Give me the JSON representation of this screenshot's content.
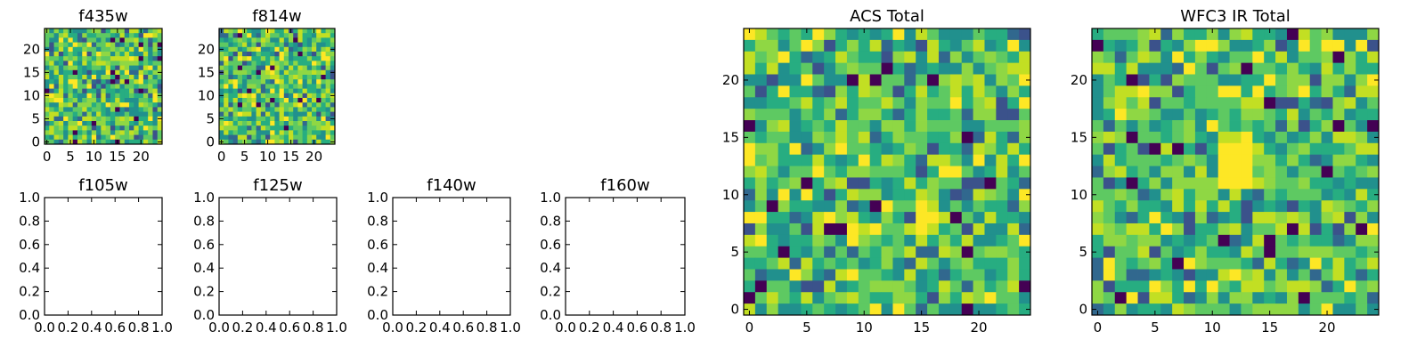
{
  "chart_data": [
    {
      "type": "heatmap",
      "title": "f435w",
      "xticks": [
        "0",
        "5",
        "10",
        "15",
        "20"
      ],
      "yticks": [
        "0",
        "5",
        "10",
        "15",
        "20"
      ],
      "grid": "25x25 pixel noise image",
      "colormap": "viridis",
      "xlim": [
        0,
        24
      ],
      "ylim": [
        0,
        24
      ]
    },
    {
      "type": "heatmap",
      "title": "f814w",
      "xticks": [
        "0",
        "5",
        "10",
        "15",
        "20"
      ],
      "yticks": [
        "0",
        "5",
        "10",
        "15",
        "20"
      ],
      "grid": "25x25 pixel noise image",
      "colormap": "viridis",
      "xlim": [
        0,
        24
      ],
      "ylim": [
        0,
        24
      ]
    },
    {
      "type": "heatmap",
      "title": "f105w",
      "xticks": [
        "0.0",
        "0.2",
        "0.4",
        "0.6",
        "0.8",
        "1.0"
      ],
      "yticks": [
        "0.0",
        "0.2",
        "0.4",
        "0.6",
        "0.8",
        "1.0"
      ],
      "grid": "empty",
      "xlim": [
        0,
        1
      ],
      "ylim": [
        0,
        1
      ]
    },
    {
      "type": "heatmap",
      "title": "f125w",
      "xticks": [
        "0.0",
        "0.2",
        "0.4",
        "0.6",
        "0.8",
        "1.0"
      ],
      "yticks": [
        "0.0",
        "0.2",
        "0.4",
        "0.6",
        "0.8",
        "1.0"
      ],
      "grid": "empty",
      "xlim": [
        0,
        1
      ],
      "ylim": [
        0,
        1
      ]
    },
    {
      "type": "heatmap",
      "title": "f140w",
      "xticks": [
        "0.0",
        "0.2",
        "0.4",
        "0.6",
        "0.8",
        "1.0"
      ],
      "yticks": [
        "0.0",
        "0.2",
        "0.4",
        "0.6",
        "0.8",
        "1.0"
      ],
      "grid": "empty",
      "xlim": [
        0,
        1
      ],
      "ylim": [
        0,
        1
      ]
    },
    {
      "type": "heatmap",
      "title": "f160w",
      "xticks": [
        "0.0",
        "0.2",
        "0.4",
        "0.6",
        "0.8",
        "1.0"
      ],
      "yticks": [
        "0.0",
        "0.2",
        "0.4",
        "0.6",
        "0.8",
        "1.0"
      ],
      "grid": "empty",
      "xlim": [
        0,
        1
      ],
      "ylim": [
        0,
        1
      ]
    },
    {
      "type": "heatmap",
      "title": "ACS Total",
      "xticks": [
        "0",
        "5",
        "10",
        "15",
        "20"
      ],
      "yticks": [
        "0",
        "5",
        "10",
        "15",
        "20"
      ],
      "grid": "25x25 pixel noise image",
      "colormap": "viridis",
      "xlim": [
        0,
        24
      ],
      "ylim": [
        0,
        24
      ]
    },
    {
      "type": "heatmap",
      "title": "WFC3 IR Total",
      "xticks": [
        "0",
        "5",
        "10",
        "15",
        "20"
      ],
      "yticks": [
        "0",
        "5",
        "10",
        "15",
        "20"
      ],
      "grid": "25x25 pixel noise image with bright blob near (12,12)",
      "colormap": "viridis",
      "xlim": [
        0,
        24
      ],
      "ylim": [
        0,
        24
      ]
    }
  ]
}
